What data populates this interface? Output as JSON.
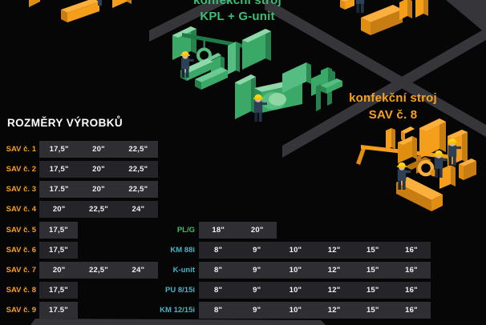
{
  "title": "ROZMĚRY VÝROBKŮ",
  "machine_labels": {
    "top": {
      "line1": "konfekční stroj",
      "line2": "KPL + G-unit"
    },
    "right": {
      "line1": "konfekční stroj",
      "line2": "SAV č. 8"
    }
  },
  "colors": {
    "background": "#060607",
    "road": "#36363a",
    "green_machine": "#3aa867",
    "orange_machine": "#f59e1b",
    "label_orange": "#f7a01e",
    "label_green": "#3cbf6e",
    "label_cyan": "#45b5c6",
    "row_light": "#2e2e33",
    "row_dark": "#242429",
    "text_white": "#f1f1f2"
  },
  "left_table": {
    "rows": [
      {
        "label": "SAV č. 1",
        "cells": [
          "17,5\"",
          "20\"",
          "22,5\""
        ]
      },
      {
        "label": "SAV č. 2",
        "cells": [
          "17,5\"",
          "20\"",
          "22,5\""
        ]
      },
      {
        "label": "SAV č. 3",
        "cells": [
          "17.5\"",
          "20\"",
          "22,5\""
        ]
      },
      {
        "label": "SAV č. 4",
        "cells": [
          "20\"",
          "22,5\"",
          "24\""
        ]
      },
      {
        "label": "SAV č. 5",
        "cells": [
          "17,5\""
        ]
      },
      {
        "label": "SAV č. 6",
        "cells": [
          "17,5\""
        ]
      },
      {
        "label": "SAV č. 7",
        "cells": [
          "20\"",
          "22,5\"",
          "24\""
        ]
      },
      {
        "label": "SAV č. 8",
        "cells": [
          "17,5\""
        ]
      },
      {
        "label": "SAV č. 9",
        "cells": [
          "17.5\""
        ]
      }
    ]
  },
  "right_table": {
    "rows": [
      {
        "label": "PL/G",
        "color": "green",
        "cells": [
          "18\"",
          "20\""
        ]
      },
      {
        "label": "KM 88i",
        "color": "cyan",
        "cells": [
          "8\"",
          "9\"",
          "10\"",
          "12\"",
          "15\"",
          "16\""
        ]
      },
      {
        "label": "K-unit",
        "color": "cyan",
        "cells": [
          "8\"",
          "9\"",
          "10\"",
          "12\"",
          "15\"",
          "16\""
        ]
      },
      {
        "label": "PU 8/15i",
        "color": "cyan",
        "cells": [
          "8\"",
          "9\"",
          "10\"",
          "12\"",
          "15\"",
          "16\""
        ]
      },
      {
        "label": "KM 12/15i",
        "color": "cyan",
        "cells": [
          "8\"",
          "9\"",
          "10\"",
          "12\"",
          "15\"",
          "16\""
        ]
      }
    ]
  }
}
